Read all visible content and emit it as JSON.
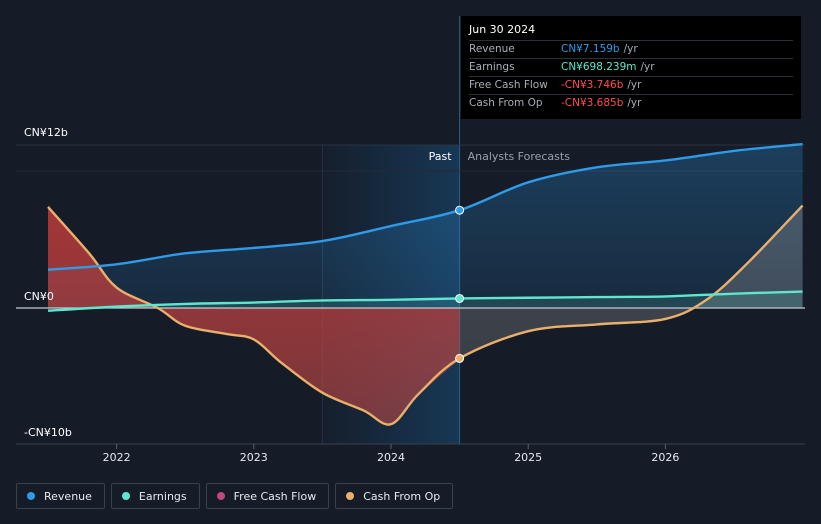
{
  "tooltip": {
    "date": "Jun 30 2024",
    "rows": [
      {
        "label": "Revenue",
        "value": "CN¥7.159b",
        "unit": "/yr",
        "color": "#2e9be8"
      },
      {
        "label": "Earnings",
        "value": "CN¥698.239m",
        "unit": "/yr",
        "color": "#5ee6cf"
      },
      {
        "label": "Free Cash Flow",
        "value": "-CN¥3.746b",
        "unit": "/yr",
        "color": "#ff4d4d"
      },
      {
        "label": "Cash From Op",
        "value": "-CN¥3.685b",
        "unit": "/yr",
        "color": "#ff4d4d"
      }
    ]
  },
  "labels": {
    "past": "Past",
    "forecast": "Analysts Forecasts"
  },
  "chart_data": {
    "type": "line",
    "y_unit": "CN¥ b",
    "yticks": [
      {
        "value": 12,
        "label": "CN¥12b"
      },
      {
        "value": 0,
        "label": "CN¥0"
      },
      {
        "value": -10,
        "label": "-CN¥10b"
      }
    ],
    "xticks": [
      {
        "value": 2022,
        "label": "2022"
      },
      {
        "value": 2023,
        "label": "2023"
      },
      {
        "value": 2024,
        "label": "2024"
      },
      {
        "value": 2025,
        "label": "2025"
      },
      {
        "value": 2026,
        "label": "2026"
      }
    ],
    "xlim": [
      2021.5,
      2027.0
    ],
    "ylim": [
      -10,
      12
    ],
    "past_shade_start": 2023.5,
    "divider": 2024.5,
    "series": [
      {
        "name": "Revenue",
        "color": "#2e9be8",
        "fill": "#2e9be8",
        "points": [
          [
            2021.5,
            2.8
          ],
          [
            2022.0,
            3.2
          ],
          [
            2022.5,
            4.0
          ],
          [
            2023.0,
            4.4
          ],
          [
            2023.5,
            4.9
          ],
          [
            2024.0,
            6.0
          ],
          [
            2024.5,
            7.16
          ],
          [
            2025.0,
            9.2
          ],
          [
            2025.5,
            10.3
          ],
          [
            2026.0,
            10.8
          ],
          [
            2026.5,
            11.5
          ],
          [
            2027.0,
            12.0
          ]
        ]
      },
      {
        "name": "Earnings",
        "color": "#5ee6cf",
        "fill": "#5ee6cf",
        "points": [
          [
            2021.5,
            -0.2
          ],
          [
            2022.0,
            0.1
          ],
          [
            2022.5,
            0.3
          ],
          [
            2023.0,
            0.4
          ],
          [
            2023.5,
            0.55
          ],
          [
            2024.0,
            0.6
          ],
          [
            2024.5,
            0.7
          ],
          [
            2025.0,
            0.75
          ],
          [
            2025.5,
            0.8
          ],
          [
            2026.0,
            0.85
          ],
          [
            2026.5,
            1.05
          ],
          [
            2027.0,
            1.2
          ]
        ]
      },
      {
        "name": "Free Cash Flow",
        "color": "#c2477a",
        "fill": "#d8506c",
        "fill_only": true,
        "points": [
          [
            2021.5,
            7.5
          ],
          [
            2021.8,
            4.0
          ],
          [
            2022.0,
            1.5
          ],
          [
            2022.3,
            0.0
          ],
          [
            2022.5,
            -1.3
          ],
          [
            2022.8,
            -1.9
          ],
          [
            2023.0,
            -2.3
          ],
          [
            2023.2,
            -4.0
          ],
          [
            2023.5,
            -6.2
          ],
          [
            2023.8,
            -7.5
          ],
          [
            2024.0,
            -8.6
          ],
          [
            2024.2,
            -6.4
          ],
          [
            2024.5,
            -3.75
          ]
        ]
      },
      {
        "name": "Cash From Op",
        "color": "#e8b06a",
        "fill": "#8a8a8a",
        "points": [
          [
            2021.5,
            7.4
          ],
          [
            2021.8,
            4.0
          ],
          [
            2022.0,
            1.5
          ],
          [
            2022.3,
            0.0
          ],
          [
            2022.5,
            -1.3
          ],
          [
            2022.8,
            -1.9
          ],
          [
            2023.0,
            -2.3
          ],
          [
            2023.2,
            -4.0
          ],
          [
            2023.5,
            -6.2
          ],
          [
            2023.8,
            -7.5
          ],
          [
            2024.0,
            -8.5
          ],
          [
            2024.2,
            -6.3
          ],
          [
            2024.5,
            -3.69
          ],
          [
            2025.0,
            -1.7
          ],
          [
            2025.5,
            -1.2
          ],
          [
            2026.0,
            -0.8
          ],
          [
            2026.3,
            0.6
          ],
          [
            2026.6,
            3.3
          ],
          [
            2027.0,
            7.5
          ]
        ]
      }
    ]
  },
  "legend": [
    {
      "label": "Revenue",
      "color": "#2e9be8"
    },
    {
      "label": "Earnings",
      "color": "#5ee6cf"
    },
    {
      "label": "Free Cash Flow",
      "color": "#c2477a"
    },
    {
      "label": "Cash From Op",
      "color": "#e8b06a"
    }
  ]
}
